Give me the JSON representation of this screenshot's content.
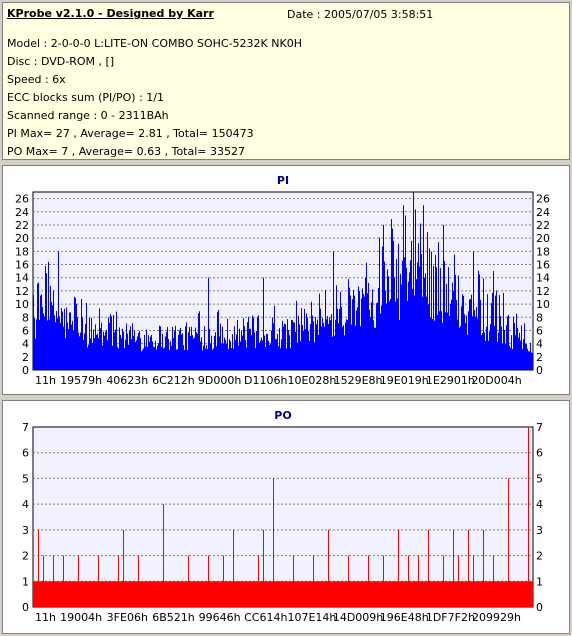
{
  "info": {
    "title": "KProbe v2.1.0 - Designed by Karr",
    "date": "Date : 2005/07/05 3:58:51",
    "lines": [
      "Model : 2-0-0-0 L:LITE-ON COMBO SOHC-5232K NK0H",
      "Disc : DVD-ROM ,  []",
      "Speed : 6x",
      "ECC blocks sum (PI/PO) : 1/1",
      "Scanned range : 0 - 2311BAh",
      "PI Max= 27 , Average= 2.81 , Total= 150473",
      "PO Max= 7 , Average= 0.63 , Total= 33527"
    ]
  },
  "chart_data": [
    {
      "type": "bar",
      "title": "PI",
      "color": "#0000ff",
      "ylim": [
        0,
        27
      ],
      "yticks": [
        0,
        2,
        4,
        6,
        8,
        10,
        12,
        14,
        16,
        18,
        20,
        22,
        24,
        26
      ],
      "xticks": [
        "11h",
        "19579h",
        "40623h",
        "6C212h",
        "9D000h",
        "D1106h",
        "10E028h",
        "1529E8h",
        "19E019h",
        "1E2901h",
        "20D004h"
      ],
      "grid": true,
      "max": 27,
      "average": 2.81,
      "envelope": [
        {
          "x": 0.0,
          "y": 11
        },
        {
          "x": 0.03,
          "y": 15
        },
        {
          "x": 0.07,
          "y": 11
        },
        {
          "x": 0.12,
          "y": 9
        },
        {
          "x": 0.2,
          "y": 8
        },
        {
          "x": 0.3,
          "y": 8
        },
        {
          "x": 0.4,
          "y": 9
        },
        {
          "x": 0.5,
          "y": 9
        },
        {
          "x": 0.56,
          "y": 10
        },
        {
          "x": 0.62,
          "y": 13
        },
        {
          "x": 0.68,
          "y": 18
        },
        {
          "x": 0.74,
          "y": 22
        },
        {
          "x": 0.78,
          "y": 23
        },
        {
          "x": 0.83,
          "y": 18
        },
        {
          "x": 0.88,
          "y": 14
        },
        {
          "x": 0.93,
          "y": 11
        },
        {
          "x": 0.97,
          "y": 8
        },
        {
          "x": 1.0,
          "y": 5
        }
      ],
      "peaks": [
        {
          "x": 0.76,
          "y": 27
        },
        {
          "x": 0.74,
          "y": 25
        },
        {
          "x": 0.78,
          "y": 25
        },
        {
          "x": 0.7,
          "y": 22
        },
        {
          "x": 0.82,
          "y": 22
        },
        {
          "x": 0.05,
          "y": 18
        },
        {
          "x": 0.35,
          "y": 14
        },
        {
          "x": 0.46,
          "y": 14
        },
        {
          "x": 0.6,
          "y": 18
        },
        {
          "x": 0.88,
          "y": 18
        },
        {
          "x": 0.92,
          "y": 15
        }
      ]
    },
    {
      "type": "bar",
      "title": "PO",
      "color": "#ff0000",
      "ylim": [
        0,
        7
      ],
      "yticks": [
        0,
        1,
        2,
        3,
        4,
        5,
        6,
        7
      ],
      "xticks": [
        "11h",
        "19004h",
        "3FE06h",
        "6B521h",
        "99646h",
        "CC614h",
        "107E14h",
        "14D009h",
        "196E48h",
        "1DF7F2h",
        "209929h"
      ],
      "grid": true,
      "max": 7,
      "average": 0.63,
      "baseline": 1,
      "spikes": [
        {
          "x": 0.01,
          "y": 3
        },
        {
          "x": 0.02,
          "y": 2
        },
        {
          "x": 0.04,
          "y": 2
        },
        {
          "x": 0.06,
          "y": 2
        },
        {
          "x": 0.09,
          "y": 2
        },
        {
          "x": 0.13,
          "y": 2
        },
        {
          "x": 0.17,
          "y": 2
        },
        {
          "x": 0.18,
          "y": 3
        },
        {
          "x": 0.21,
          "y": 2
        },
        {
          "x": 0.26,
          "y": 2
        },
        {
          "x": 0.26,
          "y": 4
        },
        {
          "x": 0.31,
          "y": 2
        },
        {
          "x": 0.35,
          "y": 2
        },
        {
          "x": 0.38,
          "y": 2
        },
        {
          "x": 0.4,
          "y": 3
        },
        {
          "x": 0.45,
          "y": 2
        },
        {
          "x": 0.46,
          "y": 3
        },
        {
          "x": 0.48,
          "y": 5
        },
        {
          "x": 0.52,
          "y": 2
        },
        {
          "x": 0.56,
          "y": 2
        },
        {
          "x": 0.59,
          "y": 3
        },
        {
          "x": 0.63,
          "y": 2
        },
        {
          "x": 0.67,
          "y": 2
        },
        {
          "x": 0.7,
          "y": 2
        },
        {
          "x": 0.73,
          "y": 3
        },
        {
          "x": 0.75,
          "y": 2
        },
        {
          "x": 0.77,
          "y": 2
        },
        {
          "x": 0.79,
          "y": 3
        },
        {
          "x": 0.82,
          "y": 2
        },
        {
          "x": 0.84,
          "y": 3
        },
        {
          "x": 0.85,
          "y": 2
        },
        {
          "x": 0.87,
          "y": 3
        },
        {
          "x": 0.88,
          "y": 2
        },
        {
          "x": 0.9,
          "y": 3
        },
        {
          "x": 0.92,
          "y": 2
        },
        {
          "x": 0.95,
          "y": 5
        },
        {
          "x": 0.99,
          "y": 7
        }
      ]
    }
  ]
}
